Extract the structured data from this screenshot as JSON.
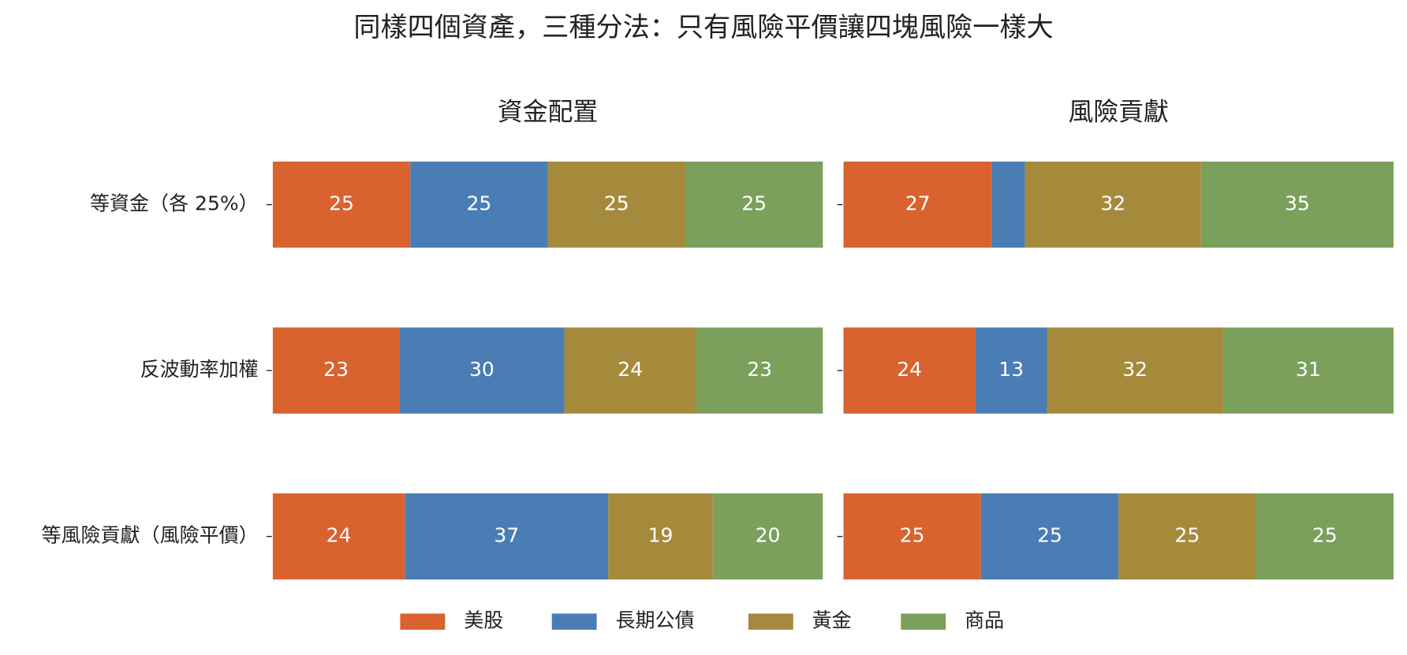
{
  "title": "同樣四個資產，三種分法：只有風險平價讓四塊風險一樣大",
  "chart_data": [
    {
      "type": "stacked_barh",
      "title": "資金配置",
      "xlim": [
        0,
        100
      ],
      "categories": [
        "等資金（各 25%）",
        "反波動率加權",
        "等風險貢獻（風險平價）"
      ],
      "series": [
        {
          "name": "美股",
          "color": "#d9622f",
          "values": [
            25,
            23,
            24
          ]
        },
        {
          "name": "長期公債",
          "color": "#4a7db4",
          "values": [
            25,
            30,
            37
          ]
        },
        {
          "name": "黃金",
          "color": "#a68a3c",
          "values": [
            25,
            24,
            19
          ]
        },
        {
          "name": "商品",
          "color": "#7aa05b",
          "values": [
            25,
            23,
            20
          ]
        }
      ]
    },
    {
      "type": "stacked_barh",
      "title": "風險貢獻",
      "xlim": [
        0,
        100
      ],
      "series": [
        {
          "name": "美股",
          "color": "#d9622f",
          "values": [
            27,
            24,
            25
          ]
        },
        {
          "name": "長期公債",
          "color": "#4a7db4",
          "values": [
            6,
            13,
            25
          ],
          "value_labels": [
            null,
            "13",
            "25"
          ]
        },
        {
          "name": "黃金",
          "color": "#a68a3c",
          "values": [
            32,
            32,
            25
          ]
        },
        {
          "name": "商品",
          "color": "#7aa05b",
          "values": [
            35,
            31,
            25
          ]
        }
      ]
    }
  ]
}
